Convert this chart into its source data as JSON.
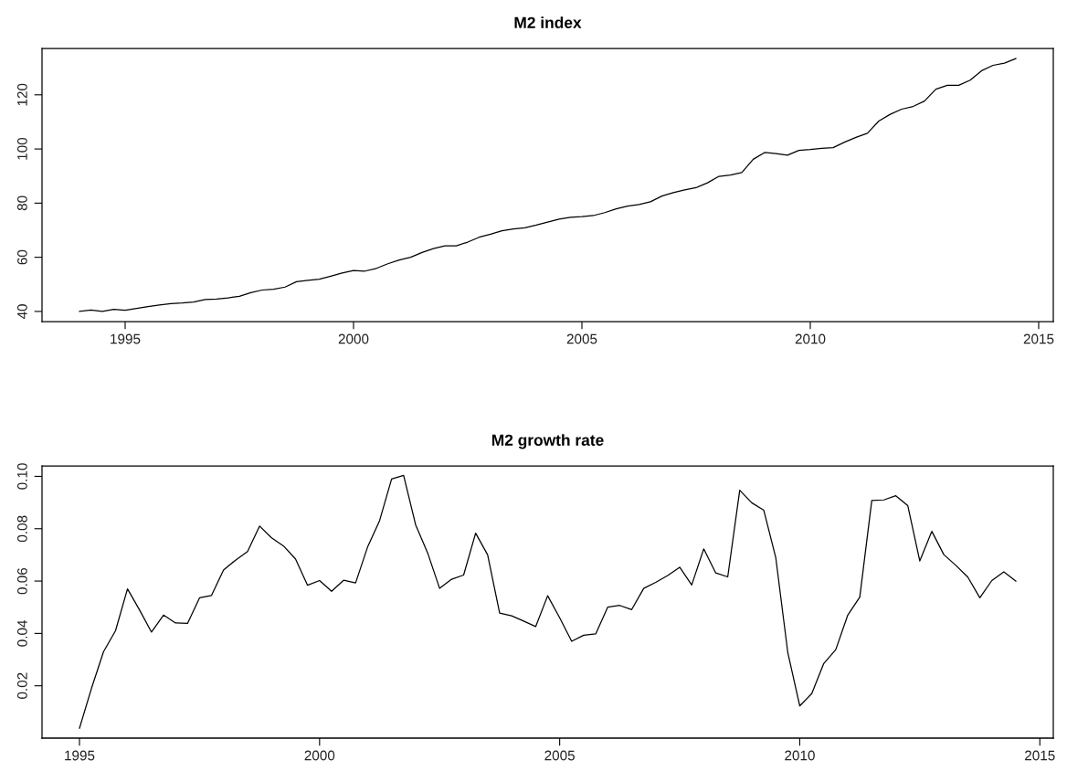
{
  "chart_data": [
    {
      "type": "line",
      "title": "M2 index",
      "xlim": [
        1993.18,
        2015.32
      ],
      "ylim": [
        36.26,
        137.14
      ],
      "xticks": [
        1995,
        2000,
        2005,
        2010,
        2015
      ],
      "yticks": [
        40,
        60,
        80,
        100,
        120
      ],
      "series": [
        {
          "color": "#000000",
          "x": [
            1994.0,
            1994.25,
            1994.5,
            1994.75,
            1995.0,
            1995.25,
            1995.5,
            1995.75,
            1996.0,
            1996.25,
            1996.5,
            1996.75,
            1997.0,
            1997.25,
            1997.5,
            1997.75,
            1998.0,
            1998.25,
            1998.5,
            1998.75,
            1999.0,
            1999.25,
            1999.5,
            1999.75,
            2000.0,
            2000.25,
            2000.5,
            2000.75,
            2001.0,
            2001.25,
            2001.5,
            2001.75,
            2002.0,
            2002.25,
            2002.5,
            2002.75,
            2003.0,
            2003.25,
            2003.5,
            2003.75,
            2004.0,
            2004.25,
            2004.5,
            2004.75,
            2005.0,
            2005.25,
            2005.5,
            2005.75,
            2006.0,
            2006.25,
            2006.5,
            2006.75,
            2007.0,
            2007.25,
            2007.5,
            2007.75,
            2008.0,
            2008.25,
            2008.5,
            2008.75,
            2009.0,
            2009.25,
            2009.5,
            2009.75,
            2010.0,
            2010.25,
            2010.5,
            2010.75,
            2011.0,
            2011.25,
            2011.5,
            2011.75,
            2012.0,
            2012.25,
            2012.5,
            2012.75,
            2013.0,
            2013.25,
            2013.5,
            2013.75,
            2014.0,
            2014.25,
            2014.5
          ],
          "values": [
            40.0,
            40.5,
            40.0,
            40.8,
            40.4,
            41.1,
            41.8,
            42.4,
            42.9,
            43.1,
            43.5,
            44.4,
            44.6,
            45.0,
            45.6,
            46.9,
            47.9,
            48.2,
            49.0,
            51.0,
            51.5,
            51.9,
            53.0,
            54.2,
            55.1,
            54.9,
            55.9,
            57.6,
            59.0,
            60.0,
            61.8,
            63.2,
            64.2,
            64.2,
            65.6,
            67.4,
            68.5,
            69.8,
            70.5,
            70.9,
            71.9,
            73.0,
            74.1,
            74.8,
            75.0,
            75.4,
            76.5,
            77.9,
            78.9,
            79.5,
            80.5,
            82.6,
            83.9,
            84.9,
            85.7,
            87.5,
            89.9,
            90.4,
            91.3,
            96.2,
            98.7,
            98.3,
            97.7,
            99.5,
            99.8,
            100.2,
            100.5,
            102.5,
            104.3,
            105.8,
            110.3,
            112.8,
            114.7,
            115.7,
            117.7,
            122.1,
            123.5,
            123.5,
            125.4,
            128.9,
            130.9,
            131.7,
            133.4
          ]
        }
      ]
    },
    {
      "type": "line",
      "title": "M2 growth rate",
      "xlim": [
        1994.22,
        2015.28
      ],
      "ylim": [
        0.0,
        0.104
      ],
      "xticks": [
        1995,
        2000,
        2005,
        2010,
        2015
      ],
      "yticks": [
        0.02,
        0.04,
        0.06,
        0.08,
        {
          "value": 0.1,
          "label": "0.10"
        }
      ],
      "series": [
        {
          "color": "#000000",
          "x": [
            1995.0,
            1995.25,
            1995.5,
            1995.75,
            1996.0,
            1996.25,
            1996.5,
            1996.75,
            1997.0,
            1997.25,
            1997.5,
            1997.75,
            1998.0,
            1998.25,
            1998.5,
            1998.75,
            1999.0,
            1999.25,
            1999.5,
            1999.75,
            2000.0,
            2000.25,
            2000.5,
            2000.75,
            2001.0,
            2001.25,
            2001.5,
            2001.75,
            2002.0,
            2002.25,
            2002.5,
            2002.75,
            2003.0,
            2003.25,
            2003.5,
            2003.75,
            2004.0,
            2004.25,
            2004.5,
            2004.75,
            2005.0,
            2005.25,
            2005.5,
            2005.75,
            2006.0,
            2006.25,
            2006.5,
            2006.75,
            2007.0,
            2007.25,
            2007.5,
            2007.75,
            2008.0,
            2008.25,
            2008.5,
            2008.75,
            2009.0,
            2009.25,
            2009.5,
            2009.75,
            2010.0,
            2010.25,
            2010.5,
            2010.75,
            2011.0,
            2011.25,
            2011.5,
            2011.75,
            2012.0,
            2012.25,
            2012.5,
            2012.75,
            2013.0,
            2013.25,
            2013.5,
            2013.75,
            2014.0,
            2014.25,
            2014.5
          ],
          "values": [
            0.0038,
            0.019,
            0.033,
            0.041,
            0.057,
            0.049,
            0.0405,
            0.047,
            0.044,
            0.0438,
            0.0536,
            0.0545,
            0.0642,
            0.068,
            0.0713,
            0.081,
            0.0765,
            0.0734,
            0.0684,
            0.0584,
            0.0602,
            0.0561,
            0.0603,
            0.0593,
            0.073,
            0.0831,
            0.099,
            0.1004,
            0.0815,
            0.0708,
            0.0572,
            0.0607,
            0.0623,
            0.0783,
            0.07,
            0.0478,
            0.0467,
            0.0447,
            0.0426,
            0.0544,
            0.046,
            0.037,
            0.0393,
            0.0398,
            0.05,
            0.0507,
            0.0491,
            0.0572,
            0.0595,
            0.0621,
            0.0653,
            0.0585,
            0.0723,
            0.0631,
            0.0616,
            0.0947,
            0.0899,
            0.0871,
            0.069,
            0.0328,
            0.0123,
            0.017,
            0.0285,
            0.0338,
            0.047,
            0.0539,
            0.0908,
            0.091,
            0.0926,
            0.0888,
            0.0677,
            0.079,
            0.0701,
            0.066,
            0.0615,
            0.0536,
            0.0602,
            0.0635,
            0.06
          ]
        }
      ]
    }
  ]
}
